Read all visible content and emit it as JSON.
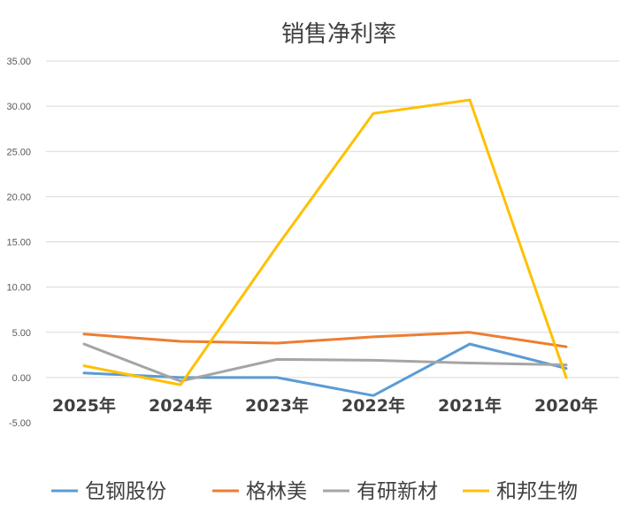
{
  "chart_data": {
    "type": "line",
    "title": "销售净利率",
    "categories": [
      "2025年",
      "2024年",
      "2023年",
      "2022年",
      "2021年",
      "2020年"
    ],
    "yticks": [
      "35.00",
      "30.00",
      "25.00",
      "20.00",
      "15.00",
      "10.00",
      "5.00",
      "0.00",
      "-5.00"
    ],
    "ylim": [
      -5,
      35
    ],
    "grid": true,
    "legend_position": "bottom",
    "series": [
      {
        "name": "包钢股份",
        "color": "#5B9BD5",
        "values": [
          0.5,
          0.0,
          0.0,
          -2.0,
          3.7,
          1.0
        ]
      },
      {
        "name": "格林美",
        "color": "#ED7D31",
        "values": [
          4.8,
          4.0,
          3.8,
          4.5,
          5.0,
          3.4
        ]
      },
      {
        "name": "有研新材",
        "color": "#A5A5A5",
        "values": [
          3.7,
          -0.4,
          2.0,
          1.9,
          1.6,
          1.4
        ]
      },
      {
        "name": "和邦生物",
        "color": "#FFC000",
        "values": [
          1.3,
          -0.8,
          14.5,
          29.2,
          30.7,
          0.0
        ]
      }
    ]
  }
}
